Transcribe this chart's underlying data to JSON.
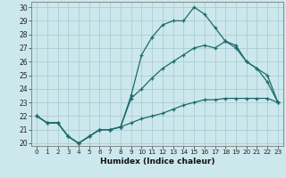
{
  "xlabel": "Humidex (Indice chaleur)",
  "bg_color": "#cce8ec",
  "grid_color": "#aacdd4",
  "line_color": "#1a6b6b",
  "xlim": [
    -0.5,
    23.5
  ],
  "ylim": [
    19.8,
    30.4
  ],
  "xticks": [
    0,
    1,
    2,
    3,
    4,
    5,
    6,
    7,
    8,
    9,
    10,
    11,
    12,
    13,
    14,
    15,
    16,
    17,
    18,
    19,
    20,
    21,
    22,
    23
  ],
  "yticks": [
    20,
    21,
    22,
    23,
    24,
    25,
    26,
    27,
    28,
    29,
    30
  ],
  "series": [
    {
      "x": [
        0,
        1,
        2,
        3,
        4,
        5,
        6,
        7,
        8,
        9,
        10,
        11,
        12,
        13,
        14,
        15,
        16,
        17,
        18,
        19,
        20,
        21,
        22,
        23
      ],
      "y": [
        22,
        21.5,
        21.5,
        20.5,
        20.0,
        20.5,
        21.0,
        21.0,
        21.2,
        23.5,
        26.5,
        27.8,
        28.7,
        29.0,
        29.0,
        30.0,
        29.5,
        28.5,
        27.5,
        27.2,
        26.0,
        25.5,
        24.5,
        23.0
      ]
    },
    {
      "x": [
        0,
        1,
        2,
        3,
        4,
        5,
        6,
        7,
        8,
        9,
        10,
        11,
        12,
        13,
        14,
        15,
        16,
        17,
        18,
        19,
        20,
        21,
        22,
        23
      ],
      "y": [
        22,
        21.5,
        21.5,
        20.5,
        20.0,
        20.5,
        21.0,
        21.0,
        21.2,
        23.3,
        24.0,
        24.8,
        25.5,
        26.0,
        26.5,
        27.0,
        27.2,
        27.0,
        27.5,
        27.0,
        26.0,
        25.5,
        25.0,
        23.0
      ]
    },
    {
      "x": [
        0,
        1,
        2,
        3,
        4,
        5,
        6,
        7,
        8,
        9,
        10,
        11,
        12,
        13,
        14,
        15,
        16,
        17,
        18,
        19,
        20,
        21,
        22,
        23
      ],
      "y": [
        22,
        21.5,
        21.5,
        20.5,
        20.0,
        20.5,
        21.0,
        21.0,
        21.2,
        21.5,
        21.8,
        22.0,
        22.2,
        22.5,
        22.8,
        23.0,
        23.2,
        23.2,
        23.3,
        23.3,
        23.3,
        23.3,
        23.3,
        23.0
      ]
    }
  ]
}
